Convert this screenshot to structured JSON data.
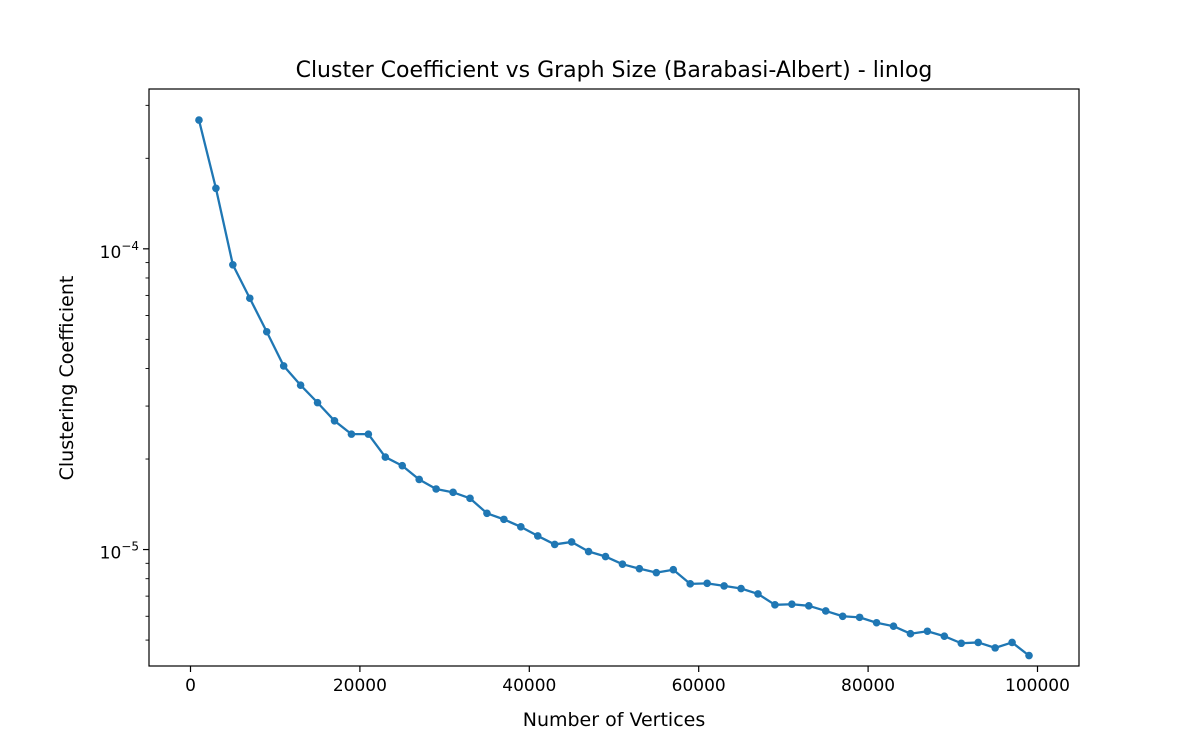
{
  "chart_data": {
    "type": "line",
    "title": "Cluster Coefficient vs Graph Size (Barabasi-Albert) - linlog",
    "xlabel": "Number of Vertices",
    "ylabel": "Clustering Coefficient",
    "xscale": "linear",
    "yscale": "log",
    "xlim": [
      -4900,
      104900
    ],
    "ylim": [
      4.1e-06,
      0.00034
    ],
    "grid": false,
    "legend": "none",
    "xticks": [
      0,
      20000,
      40000,
      60000,
      80000,
      100000
    ],
    "xtick_labels": [
      "0",
      "20000",
      "40000",
      "60000",
      "80000",
      "100000"
    ],
    "ytick_major": [
      {
        "base": "10",
        "exp": "−5",
        "value": 1e-05
      },
      {
        "base": "10",
        "exp": "−4",
        "value": 0.0001
      }
    ],
    "series": [
      {
        "color": "#1f77b4",
        "marker": "circle",
        "x": [
          1000,
          3000,
          5000,
          7000,
          9000,
          11000,
          13000,
          15000,
          17000,
          19000,
          21000,
          23000,
          25000,
          27000,
          29000,
          31000,
          33000,
          35000,
          37000,
          39000,
          41000,
          43000,
          45000,
          47000,
          49000,
          51000,
          53000,
          55000,
          57000,
          59000,
          61000,
          63000,
          65000,
          67000,
          69000,
          71000,
          73000,
          75000,
          77000,
          79000,
          81000,
          83000,
          85000,
          87000,
          89000,
          91000,
          93000,
          95000,
          97000,
          99000
        ],
        "values": [
          0.000268,
          0.000159,
          8.85e-05,
          6.85e-05,
          5.3e-05,
          4.08e-05,
          3.52e-05,
          3.08e-05,
          2.68e-05,
          2.42e-05,
          2.42e-05,
          2.03e-05,
          1.9e-05,
          1.71e-05,
          1.59e-05,
          1.55e-05,
          1.48e-05,
          1.32e-05,
          1.26e-05,
          1.19e-05,
          1.11e-05,
          1.04e-05,
          1.06e-05,
          9.85e-06,
          9.48e-06,
          8.94e-06,
          8.64e-06,
          8.38e-06,
          8.57e-06,
          7.69e-06,
          7.72e-06,
          7.57e-06,
          7.42e-06,
          7.12e-06,
          6.55e-06,
          6.58e-06,
          6.5e-06,
          6.25e-06,
          6e-06,
          5.95e-06,
          5.71e-06,
          5.56e-06,
          5.25e-06,
          5.35e-06,
          5.15e-06,
          4.88e-06,
          4.91e-06,
          4.71e-06,
          4.91e-06,
          4.44e-06
        ]
      }
    ]
  }
}
